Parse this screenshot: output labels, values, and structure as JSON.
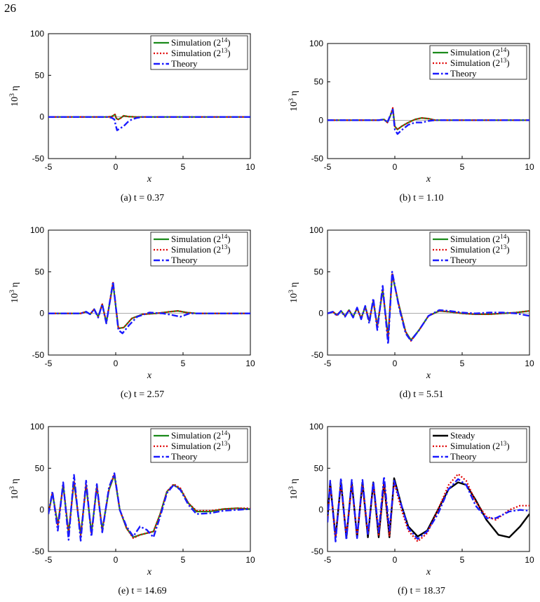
{
  "page_number": "26",
  "colors": {
    "sim14": "#1a8a1a",
    "sim13": "#e00000",
    "theory": "#1a1aff",
    "steady": "#000000"
  },
  "chart_data": [
    {
      "type": "line",
      "caption": "(a) t = 0.37",
      "xlabel": "x",
      "ylabel": "10^3 η",
      "xlim": [
        -5,
        10
      ],
      "ylim": [
        -50,
        100
      ],
      "xticks": [
        "-5",
        "0",
        "5",
        "10"
      ],
      "yticks": [
        "-50",
        "0",
        "50",
        "100"
      ],
      "legend": [
        "Simulation (2^14)",
        "Simulation (2^13)",
        "Theory"
      ],
      "legend_position": "top-right",
      "series": [
        {
          "name": "Simulation (2^14)",
          "style": "sim14",
          "x": [
            -5,
            -1,
            -0.6,
            -0.3,
            -0.15,
            -0.05,
            0.05,
            0.2,
            0.4,
            0.6,
            0.9,
            1.5,
            10
          ],
          "y": [
            0,
            0,
            0,
            0.5,
            2,
            3,
            -2,
            -3,
            -1,
            1.5,
            0.5,
            0,
            0
          ]
        },
        {
          "name": "Simulation (2^13)",
          "style": "sim13",
          "x": [
            -5,
            -1,
            -0.6,
            -0.3,
            -0.15,
            -0.05,
            0.05,
            0.2,
            0.4,
            0.6,
            0.9,
            1.5,
            10
          ],
          "y": [
            0,
            0,
            0,
            0.5,
            2,
            3,
            -2,
            -3,
            -1,
            1.5,
            0.5,
            0,
            0
          ]
        },
        {
          "name": "Theory",
          "style": "theory",
          "x": [
            -5,
            -1,
            -0.6,
            -0.3,
            -0.1,
            0,
            0.1,
            0.3,
            0.6,
            0.9,
            1.2,
            1.6,
            2,
            10
          ],
          "y": [
            0,
            0,
            0,
            -1,
            -3,
            -10,
            -16,
            -14,
            -11,
            -6,
            -3,
            -1,
            0,
            0
          ]
        }
      ]
    },
    {
      "type": "line",
      "caption": "(b) t = 1.10",
      "xlabel": "x",
      "ylabel": "10^3 η",
      "xlim": [
        -5,
        10
      ],
      "ylim": [
        -50,
        100
      ],
      "xticks": [
        "-5",
        "0",
        "5",
        "10"
      ],
      "yticks": [
        "-50",
        "0",
        "50",
        "100"
      ],
      "legend": [
        "Simulation (2^14)",
        "Simulation (2^13)",
        "Theory"
      ],
      "legend_position": "top-right",
      "series": [
        {
          "name": "Simulation (2^14)",
          "style": "sim14",
          "x": [
            -5,
            -1.2,
            -0.8,
            -0.55,
            -0.35,
            -0.15,
            0,
            0.2,
            0.5,
            1,
            1.5,
            2,
            2.5,
            3,
            10
          ],
          "y": [
            0,
            0,
            1,
            -3,
            5,
            15,
            -8,
            -12,
            -8,
            -3,
            1,
            3,
            2,
            0,
            0
          ]
        },
        {
          "name": "Simulation (2^13)",
          "style": "sim13",
          "x": [
            -5,
            -1.2,
            -0.8,
            -0.55,
            -0.35,
            -0.15,
            0,
            0.2,
            0.5,
            1,
            1.5,
            2,
            2.5,
            3,
            10
          ],
          "y": [
            0,
            0,
            1,
            -3,
            5,
            16,
            -8,
            -12,
            -8,
            -3,
            1,
            3,
            2,
            0,
            0
          ]
        },
        {
          "name": "Theory",
          "style": "theory",
          "x": [
            -5,
            -1.2,
            -0.8,
            -0.55,
            -0.35,
            -0.15,
            0,
            0.2,
            0.5,
            1,
            1.5,
            2,
            2.5,
            3,
            10
          ],
          "y": [
            0,
            0,
            1,
            -3,
            6,
            14,
            -12,
            -18,
            -13,
            -6,
            -3,
            -3,
            -1,
            0,
            0
          ]
        }
      ]
    },
    {
      "type": "line",
      "caption": "(c) t = 2.57",
      "xlabel": "x",
      "ylabel": "10^3 η",
      "xlim": [
        -5,
        10
      ],
      "ylim": [
        -50,
        100
      ],
      "xticks": [
        "-5",
        "0",
        "5",
        "10"
      ],
      "yticks": [
        "-50",
        "0",
        "50",
        "100"
      ],
      "legend": [
        "Simulation (2^14)",
        "Simulation (2^13)",
        "Theory"
      ],
      "legend_position": "top-right",
      "series": [
        {
          "name": "Simulation (2^14)",
          "style": "sim14",
          "x": [
            -5,
            -2.6,
            -2.2,
            -1.9,
            -1.6,
            -1.3,
            -1.0,
            -0.7,
            -0.2,
            0.2,
            0.6,
            1.2,
            2,
            3,
            4,
            4.6,
            5.3,
            6,
            10
          ],
          "y": [
            0,
            0,
            2,
            -1,
            5,
            -4,
            11,
            -11,
            36,
            -18,
            -17,
            -6,
            -1,
            0,
            2,
            3,
            1,
            0,
            0
          ]
        },
        {
          "name": "Simulation (2^13)",
          "style": "sim13",
          "x": [
            -5,
            -2.6,
            -2.2,
            -1.9,
            -1.6,
            -1.3,
            -1.0,
            -0.7,
            -0.2,
            0.2,
            0.6,
            1.2,
            2,
            3,
            4,
            4.6,
            5.3,
            6,
            10
          ],
          "y": [
            0,
            0,
            2,
            -1,
            5,
            -4,
            11,
            -11,
            37,
            -18,
            -17,
            -6,
            -1,
            0,
            2,
            3,
            1,
            0,
            0
          ]
        },
        {
          "name": "Theory",
          "style": "theory",
          "x": [
            -5,
            -2.6,
            -2.2,
            -1.9,
            -1.6,
            -1.3,
            -1.0,
            -0.7,
            -0.2,
            0.2,
            0.5,
            1.0,
            1.6,
            2.5,
            3.5,
            4.2,
            4.8,
            5.5,
            6.3,
            10
          ],
          "y": [
            0,
            0,
            2,
            -1,
            5,
            -5,
            11,
            -12,
            38,
            -20,
            -24,
            -14,
            -4,
            1,
            0,
            -2,
            -4,
            0,
            0,
            0
          ]
        }
      ]
    },
    {
      "type": "line",
      "caption": "(d) t = 5.51",
      "xlabel": "x",
      "ylabel": "10^3 η",
      "xlim": [
        -5,
        10
      ],
      "ylim": [
        -50,
        100
      ],
      "xticks": [
        "-5",
        "0",
        "5",
        "10"
      ],
      "yticks": [
        "-50",
        "0",
        "50",
        "100"
      ],
      "legend": [
        "Simulation (2^14)",
        "Simulation (2^13)",
        "Theory"
      ],
      "legend_position": "top-right",
      "series": [
        {
          "name": "Simulation (2^14)",
          "style": "sim14",
          "x": [
            -5,
            -4.6,
            -4.3,
            -4.0,
            -3.7,
            -3.4,
            -3.1,
            -2.8,
            -2.5,
            -2.2,
            -1.9,
            -1.6,
            -1.3,
            -0.9,
            -0.5,
            -0.2,
            0.3,
            0.8,
            1.2,
            1.8,
            2.5,
            3.3,
            4,
            5,
            6,
            7,
            8,
            9,
            10
          ],
          "y": [
            0,
            2,
            -2,
            3,
            -3,
            4,
            -4,
            6,
            -6,
            8,
            -9,
            15,
            -15,
            28,
            -28,
            47,
            10,
            -22,
            -32,
            -20,
            -3,
            3,
            2,
            0,
            -1,
            -1,
            0,
            1,
            3
          ]
        },
        {
          "name": "Simulation (2^13)",
          "style": "sim13",
          "x": [
            -5,
            -4.6,
            -4.3,
            -4.0,
            -3.7,
            -3.4,
            -3.1,
            -2.8,
            -2.5,
            -2.2,
            -1.9,
            -1.6,
            -1.3,
            -0.9,
            -0.5,
            -0.2,
            0.3,
            0.8,
            1.2,
            1.8,
            2.5,
            3.3,
            4,
            5,
            6,
            7,
            8,
            9,
            10
          ],
          "y": [
            0,
            2,
            -2,
            3,
            -3,
            4,
            -4,
            6,
            -6,
            8,
            -9,
            15,
            -16,
            29,
            -30,
            48,
            10,
            -22,
            -33,
            -20,
            -3,
            3,
            2,
            0,
            -1,
            -1,
            0,
            1,
            3
          ]
        },
        {
          "name": "Theory",
          "style": "theory",
          "x": [
            -5,
            -4.6,
            -4.3,
            -4.0,
            -3.7,
            -3.4,
            -3.1,
            -2.8,
            -2.5,
            -2.2,
            -1.9,
            -1.6,
            -1.3,
            -0.9,
            -0.5,
            -0.2,
            0.3,
            0.8,
            1.2,
            1.8,
            2.5,
            3.3,
            4,
            5,
            6,
            7,
            8,
            9,
            10
          ],
          "y": [
            0,
            2,
            -3,
            3,
            -4,
            4,
            -5,
            7,
            -7,
            9,
            -12,
            18,
            -20,
            33,
            -37,
            50,
            8,
            -24,
            -33,
            -20,
            -3,
            4,
            3,
            1,
            0,
            1,
            1,
            0,
            -3
          ]
        }
      ]
    },
    {
      "type": "line",
      "caption": "(e) t = 14.69",
      "xlabel": "x",
      "ylabel": "10^3 η",
      "xlim": [
        -5,
        10
      ],
      "ylim": [
        -50,
        100
      ],
      "xticks": [
        "-5",
        "0",
        "5",
        "10"
      ],
      "yticks": [
        "-50",
        "0",
        "50",
        "100"
      ],
      "legend": [
        "Simulation (2^14)",
        "Simulation (2^13)",
        "Theory"
      ],
      "legend_position": "top-right",
      "series": [
        {
          "name": "Simulation (2^14)",
          "style": "sim14",
          "x": [
            -5,
            -4.7,
            -4.3,
            -3.9,
            -3.5,
            -3.1,
            -2.6,
            -2.2,
            -1.8,
            -1.4,
            -1.0,
            -0.5,
            -0.1,
            0.3,
            0.8,
            1.3,
            1.8,
            2.3,
            2.8,
            3.3,
            3.8,
            4.3,
            4.8,
            5.4,
            6,
            7,
            8,
            9,
            10
          ],
          "y": [
            -5,
            20,
            -18,
            30,
            -28,
            34,
            -30,
            30,
            -28,
            28,
            -24,
            24,
            42,
            0,
            -22,
            -33,
            -30,
            -28,
            -26,
            -5,
            22,
            30,
            25,
            8,
            -2,
            -2,
            1,
            2,
            1
          ]
        },
        {
          "name": "Simulation (2^13)",
          "style": "sim13",
          "x": [
            -5,
            -4.7,
            -4.3,
            -3.9,
            -3.5,
            -3.1,
            -2.6,
            -2.2,
            -1.8,
            -1.4,
            -1.0,
            -0.5,
            -0.1,
            0.3,
            0.8,
            1.3,
            1.8,
            2.3,
            2.8,
            3.3,
            3.8,
            4.3,
            4.8,
            5.4,
            6,
            7,
            8,
            9,
            10
          ],
          "y": [
            -5,
            21,
            -19,
            31,
            -29,
            35,
            -31,
            31,
            -29,
            29,
            -25,
            25,
            43,
            0,
            -22,
            -34,
            -30,
            -28,
            -26,
            -5,
            22,
            31,
            26,
            8,
            -1,
            -1,
            1,
            2,
            2
          ]
        },
        {
          "name": "Theory",
          "style": "theory",
          "x": [
            -5,
            -4.7,
            -4.3,
            -3.9,
            -3.5,
            -3.1,
            -2.6,
            -2.2,
            -1.8,
            -1.4,
            -1.0,
            -0.5,
            -0.1,
            0.3,
            0.8,
            1.3,
            1.8,
            2.3,
            2.8,
            3.3,
            3.8,
            4.3,
            4.8,
            5.4,
            6,
            7,
            8,
            9,
            10
          ],
          "y": [
            -5,
            22,
            -25,
            33,
            -36,
            42,
            -37,
            35,
            -32,
            31,
            -27,
            27,
            44,
            0,
            -20,
            -32,
            -20,
            -24,
            -33,
            -8,
            20,
            30,
            24,
            6,
            -5,
            -4,
            -1,
            0,
            1
          ]
        }
      ]
    },
    {
      "type": "line",
      "caption": "(f) t = 18.37",
      "xlabel": "x",
      "ylabel": "10^3 η",
      "xlim": [
        -5,
        10
      ],
      "ylim": [
        -50,
        100
      ],
      "xticks": [
        "-5",
        "0",
        "5",
        "10"
      ],
      "yticks": [
        "-50",
        "0",
        "50",
        "100"
      ],
      "legend": [
        "Steady",
        "Simulation (2^13)",
        "Theory"
      ],
      "legend_position": "top-right",
      "series": [
        {
          "name": "Steady",
          "style": "steady",
          "x": [
            -5,
            -4.8,
            -4.4,
            -4.0,
            -3.6,
            -3.2,
            -2.8,
            -2.4,
            -2.0,
            -1.6,
            -1.2,
            -0.8,
            -0.4,
            -0.05,
            0.5,
            1.0,
            1.7,
            2.4,
            3.2,
            4.0,
            4.7,
            5.3,
            6.0,
            6.8,
            7.7,
            8.5,
            9.3,
            10
          ],
          "y": [
            -10,
            33,
            -33,
            33,
            -33,
            33,
            -33,
            33,
            -33,
            33,
            -33,
            33,
            -33,
            38,
            5,
            -20,
            -32,
            -25,
            0,
            25,
            33,
            30,
            12,
            -12,
            -30,
            -33,
            -20,
            -5
          ]
        },
        {
          "name": "Simulation (2^13)",
          "style": "sim13",
          "x": [
            -5,
            -4.8,
            -4.4,
            -4.0,
            -3.6,
            -3.2,
            -2.8,
            -2.4,
            -2.0,
            -1.6,
            -1.2,
            -0.8,
            -0.4,
            -0.05,
            0.5,
            1.0,
            1.7,
            2.4,
            3.2,
            4.0,
            4.7,
            5.3,
            6.0,
            6.8,
            7.5,
            8.5,
            9.3,
            10
          ],
          "y": [
            -12,
            30,
            -32,
            31,
            -31,
            30,
            -30,
            30,
            -30,
            30,
            -30,
            31,
            -31,
            33,
            0,
            -25,
            -38,
            -28,
            0,
            30,
            43,
            35,
            10,
            -8,
            -12,
            0,
            5,
            5
          ]
        },
        {
          "name": "Theory",
          "style": "theory",
          "x": [
            -5,
            -4.8,
            -4.4,
            -4.0,
            -3.6,
            -3.2,
            -2.8,
            -2.4,
            -2.0,
            -1.6,
            -1.2,
            -0.8,
            -0.4,
            -0.05,
            0.5,
            1.0,
            1.7,
            2.4,
            3.2,
            4.0,
            4.7,
            5.3,
            6.0,
            6.8,
            7.5,
            8.5,
            9.3,
            10
          ],
          "y": [
            -15,
            35,
            -38,
            38,
            -36,
            36,
            -34,
            36,
            -30,
            34,
            -27,
            40,
            -25,
            35,
            5,
            -22,
            -35,
            -26,
            -5,
            25,
            37,
            30,
            5,
            -10,
            -10,
            -2,
            0,
            -1
          ]
        }
      ]
    }
  ]
}
